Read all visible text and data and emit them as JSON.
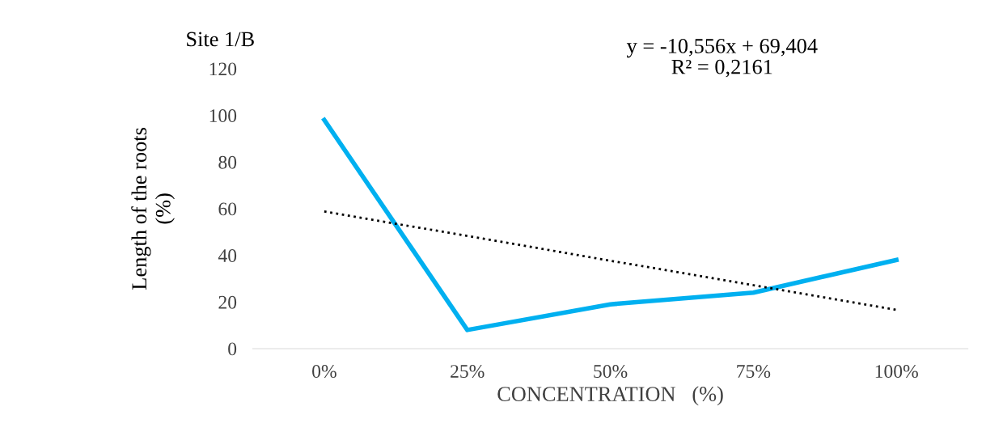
{
  "chart_data": {
    "type": "line",
    "title": "Site 1/B",
    "xlabel": "CONCENTRATION   (%)",
    "ylabel": "Length of the roots\n(%)",
    "categories": [
      "0%",
      "25%",
      "50%",
      "75%",
      "100%"
    ],
    "series": [
      {
        "color": "#00b0f0",
        "values": [
          98,
          8,
          19,
          24,
          38
        ],
        "line_style": "solid"
      },
      {
        "color": "#000000",
        "values": [
          58.8,
          48.3,
          37.7,
          27.2,
          16.6
        ],
        "line_style": "dotted"
      }
    ],
    "ylim": [
      0,
      120
    ],
    "yticks": [
      0,
      20,
      40,
      60,
      80,
      100,
      120
    ],
    "grid": false,
    "marker": "none",
    "annotations": [
      "y = -10,556x + 69,404\nR² = 0,2161"
    ]
  }
}
